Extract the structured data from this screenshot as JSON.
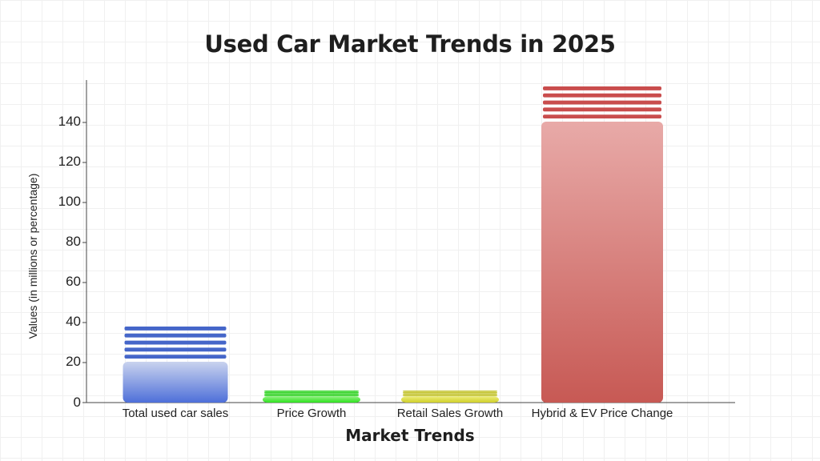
{
  "chart_data": {
    "type": "bar",
    "title": "Used Car Market Trends in 2025",
    "xlabel": "Market Trends",
    "ylabel": "Values (in millions or percentage)",
    "categories": [
      "Total used car sales",
      "Price Growth",
      "Retail Sales Growth",
      "Hybrid & EV Price Change"
    ],
    "values": [
      38,
      6,
      6,
      158
    ],
    "ylim": [
      0,
      160
    ],
    "yticks": [
      0,
      20,
      40,
      60,
      80,
      100,
      120,
      140
    ],
    "grid": true,
    "legend": "none",
    "colors": [
      {
        "top": "#c9d3ee",
        "bottom": "#4e6fd9",
        "stripe": "#4566c9"
      },
      {
        "top": "#8cf07c",
        "bottom": "#2fe21f",
        "stripe": "#2fd222"
      },
      {
        "top": "#ecec74",
        "bottom": "#cfcf2a",
        "stripe": "#c2c22a"
      },
      {
        "top": "#e8aaa8",
        "bottom": "#c75954",
        "stripe": "#c94d4d"
      }
    ]
  }
}
